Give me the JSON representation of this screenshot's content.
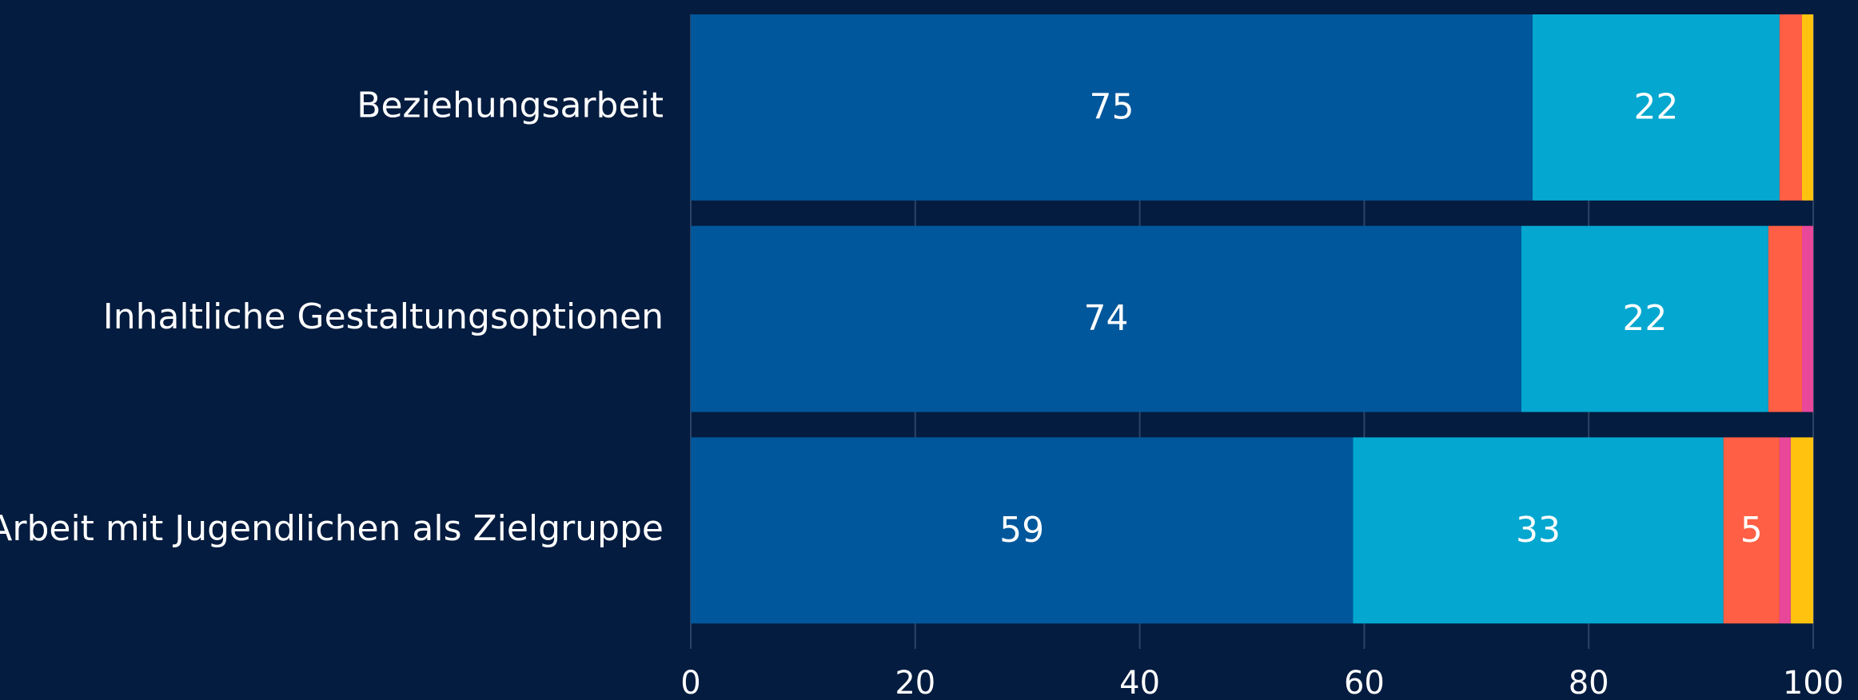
{
  "chart_data": {
    "type": "stacked-bar-horizontal",
    "categories": [
      "Beziehungsarbeit",
      "Inhaltliche Gestaltungsoptionen",
      "Arbeit mit Jugendlichen als Zielgruppe"
    ],
    "series": [
      {
        "color": "#00579c",
        "values": [
          75,
          74,
          59
        ]
      },
      {
        "color": "#04a7cf",
        "values": [
          22,
          22,
          33
        ]
      },
      {
        "color": "#ff5f45",
        "values": [
          2,
          3,
          5
        ]
      },
      {
        "color": "#e8479a",
        "values": [
          0,
          1,
          1
        ]
      },
      {
        "color": "#ffc20e",
        "values": [
          1,
          0,
          2
        ]
      }
    ],
    "xlim": [
      0,
      100
    ],
    "xticks": [
      0,
      20,
      40,
      60,
      80,
      100
    ],
    "grid": true
  }
}
